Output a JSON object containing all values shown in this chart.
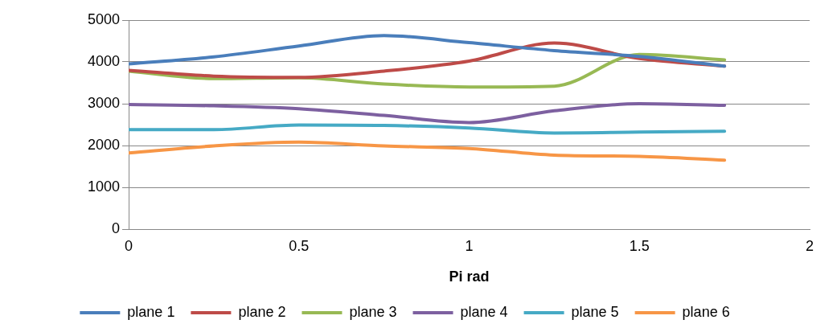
{
  "chart_data": {
    "type": "line",
    "xlabel": "Pi rad",
    "x": [
      0,
      0.25,
      0.5,
      0.75,
      1,
      1.25,
      1.5,
      1.75
    ],
    "xlim": [
      0,
      2
    ],
    "xticks": [
      0,
      0.5,
      1,
      1.5,
      2
    ],
    "ylim": [
      0,
      5000
    ],
    "yticks": [
      0,
      1000,
      2000,
      3000,
      4000,
      5000
    ],
    "grid": "y",
    "legend": "bottom",
    "marker": "none",
    "line_style": "solid",
    "series": [
      {
        "name": "plane 1",
        "color": "#4a7ebb",
        "values": [
          3950,
          4120,
          4380,
          4630,
          4460,
          4270,
          4130,
          3900
        ]
      },
      {
        "name": "plane 2",
        "color": "#be4b48",
        "values": [
          3800,
          3660,
          3630,
          3780,
          4020,
          4450,
          4080,
          3900
        ]
      },
      {
        "name": "plane 3",
        "color": "#98b954",
        "values": [
          3780,
          3600,
          3620,
          3470,
          3400,
          3420,
          4180,
          4050
        ]
      },
      {
        "name": "plane 4",
        "color": "#7d60a0",
        "values": [
          2980,
          2950,
          2880,
          2720,
          2550,
          2830,
          3000,
          2960
        ]
      },
      {
        "name": "plane 5",
        "color": "#46aac5",
        "values": [
          2380,
          2380,
          2490,
          2480,
          2420,
          2300,
          2320,
          2340
        ]
      },
      {
        "name": "plane 6",
        "color": "#f79646",
        "values": [
          1820,
          1990,
          2080,
          1990,
          1930,
          1770,
          1740,
          1650
        ]
      }
    ]
  }
}
